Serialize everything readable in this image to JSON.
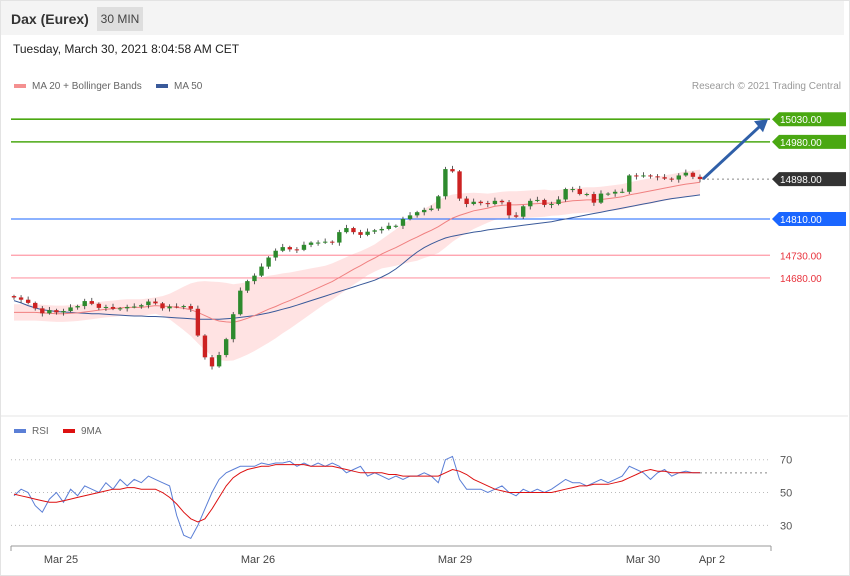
{
  "header": {
    "instrument": "Dax (Eurex)",
    "timeframe": "30 MIN"
  },
  "timestamp": "Tuesday, March 30, 2021 8:04:58 AM CET",
  "legend": {
    "ma20": {
      "label": "MA 20 + Bollinger Bands",
      "color": "#f08080"
    },
    "ma50": {
      "label": "MA 50",
      "color": "#3a5a9a"
    },
    "rsi": {
      "label": "RSI",
      "color": "#5b7fd6"
    },
    "rsi_ma": {
      "label": "9MA",
      "color": "#dd1111"
    }
  },
  "copyright": "Research © 2021 Trading Central",
  "colors": {
    "resistance": "#4aa812",
    "support": "#ff9aa6",
    "pivot": "#1a66ff",
    "current": "#333333",
    "up_candle": "#2d8a2d",
    "down_candle": "#cc2222",
    "band": "#ffd9d9",
    "arrow": "#2f5fa8"
  },
  "chart_data": [
    {
      "type": "line",
      "title": "Dax (Eurex) 30 MIN",
      "x_labels": [
        "Mar 25",
        "Mar 26",
        "Mar 29",
        "Mar 30",
        "Apr 2"
      ],
      "ylim": [
        14380,
        15090
      ],
      "levels": [
        {
          "value": 15030.0,
          "label": "15030.00",
          "kind": "resistance"
        },
        {
          "value": 14980.0,
          "label": "14980.00",
          "kind": "resistance"
        },
        {
          "value": 14898.0,
          "label": "14898.00",
          "kind": "current"
        },
        {
          "value": 14810.0,
          "label": "14810.00",
          "kind": "pivot"
        },
        {
          "value": 14730.0,
          "label": "14730.00",
          "kind": "support"
        },
        {
          "value": 14680.0,
          "label": "14680.00",
          "kind": "support"
        }
      ],
      "closes": [
        14637,
        14632,
        14625,
        14613,
        14602,
        14609,
        14604,
        14607,
        14615,
        14618,
        14629,
        14623,
        14614,
        14616,
        14612,
        14613,
        14616,
        14617,
        14620,
        14628,
        14624,
        14613,
        14617,
        14616,
        14618,
        14612,
        14553,
        14505,
        14485,
        14510,
        14545,
        14600,
        14652,
        14673,
        14685,
        14705,
        14725,
        14740,
        14748,
        14743,
        14742,
        14753,
        14758,
        14758,
        14760,
        14758,
        14781,
        14790,
        14781,
        14775,
        14782,
        14785,
        14788,
        14795,
        14795,
        14810,
        14818,
        14825,
        14830,
        14833,
        14860,
        14920,
        14915,
        14855,
        14843,
        14848,
        14845,
        14843,
        14850,
        14847,
        14818,
        14815,
        14838,
        14850,
        14852,
        14841,
        14843,
        14853,
        14876,
        14876,
        14865,
        14865,
        14846,
        14866,
        14866,
        14870,
        14870,
        14906,
        14904,
        14906,
        14904,
        14902,
        14899,
        14897,
        14906,
        14912,
        14903,
        14898
      ],
      "ma20": [
        14604,
        14604,
        14604,
        14604,
        14603,
        14602,
        14601,
        14601,
        14602,
        14603,
        14605,
        14607,
        14609,
        14611,
        14612,
        14614,
        14615,
        14615,
        14615,
        14617,
        14619,
        14618,
        14617,
        14615,
        14613,
        14610,
        14604,
        14597,
        14590,
        14585,
        14583,
        14582,
        14586,
        14591,
        14597,
        14604,
        14611,
        14617,
        14624,
        14630,
        14637,
        14644,
        14651,
        14658,
        14665,
        14672,
        14681,
        14690,
        14699,
        14707,
        14716,
        14724,
        14733,
        14740,
        14747,
        14755,
        14763,
        14770,
        14778,
        14785,
        14793,
        14803,
        14812,
        14818,
        14823,
        14828,
        14831,
        14834,
        14838,
        14840,
        14841,
        14841,
        14842,
        14843,
        14844,
        14845,
        14845,
        14846,
        14848,
        14850,
        14851,
        14852,
        14852,
        14853,
        14855,
        14857,
        14859,
        14863,
        14866,
        14869,
        14872,
        14875,
        14878,
        14881,
        14884,
        14887,
        14889,
        14891
      ],
      "bb_width": [
        18,
        18,
        18,
        18,
        18,
        18,
        18,
        18,
        18,
        18,
        18,
        18,
        18,
        18,
        18,
        18,
        18,
        18,
        18,
        18,
        18,
        22,
        28,
        38,
        48,
        58,
        68,
        76,
        82,
        86,
        86,
        84,
        82,
        80,
        78,
        76,
        74,
        70,
        66,
        62,
        58,
        54,
        50,
        46,
        42,
        40,
        38,
        36,
        34,
        32,
        30,
        30,
        32,
        36,
        40,
        44,
        48,
        52,
        54,
        56,
        58,
        56,
        52,
        48,
        44,
        40,
        36,
        32,
        30,
        30,
        30,
        30,
        30,
        30,
        30,
        30,
        28,
        28,
        28,
        28,
        28,
        28,
        28,
        28,
        28,
        28,
        28,
        28,
        28,
        28,
        28,
        28,
        28,
        28,
        28,
        28,
        28,
        28
      ],
      "ma50": [
        14630,
        14625,
        14619,
        14614,
        14610,
        14608,
        14606,
        14605,
        14604,
        14603,
        14602,
        14601,
        14601,
        14600,
        14599,
        14598,
        14597,
        14596,
        14596,
        14595,
        14595,
        14594,
        14593,
        14592,
        14591,
        14590,
        14589,
        14589,
        14589,
        14589,
        14590,
        14591,
        14593,
        14595,
        14597,
        14600,
        14603,
        14607,
        14611,
        14615,
        14620,
        14625,
        14630,
        14635,
        14640,
        14645,
        14650,
        14655,
        14660,
        14665,
        14670,
        14675,
        14682,
        14690,
        14700,
        14712,
        14725,
        14737,
        14747,
        14755,
        14762,
        14768,
        14772,
        14775,
        14778,
        14781,
        14783,
        14786,
        14788,
        14790,
        14792,
        14794,
        14796,
        14798,
        14800,
        14802,
        14804,
        14807,
        14810,
        14813,
        14816,
        14819,
        14822,
        14825,
        14828,
        14831,
        14834,
        14837,
        14840,
        14843,
        14846,
        14849,
        14852,
        14855,
        14857,
        14859,
        14861,
        14863
      ],
      "arrow": {
        "from_value": 14898,
        "to_value": 15030
      }
    },
    {
      "type": "line",
      "title": "RSI",
      "ylim": [
        18,
        82
      ],
      "levels": [
        70,
        50,
        30
      ],
      "rsi": [
        48,
        52,
        50,
        42,
        38,
        46,
        50,
        44,
        52,
        48,
        54,
        52,
        50,
        56,
        52,
        58,
        54,
        58,
        56,
        60,
        58,
        56,
        54,
        36,
        24,
        22,
        30,
        40,
        50,
        58,
        62,
        64,
        66,
        66,
        66,
        68,
        67,
        68,
        68,
        69,
        66,
        68,
        66,
        68,
        66,
        68,
        66,
        62,
        64,
        66,
        60,
        62,
        60,
        58,
        60,
        58,
        60,
        60,
        62,
        60,
        56,
        70,
        72,
        58,
        52,
        52,
        52,
        50,
        52,
        54,
        50,
        48,
        52,
        50,
        52,
        50,
        52,
        55,
        58,
        56,
        56,
        54,
        56,
        58,
        56,
        58,
        60,
        66,
        64,
        62,
        58,
        62,
        64,
        60,
        62,
        63,
        62,
        62
      ],
      "rsi_ma": [
        49,
        48,
        47,
        46,
        45,
        44,
        44,
        45,
        46,
        47,
        48,
        49,
        50,
        51,
        52,
        52,
        53,
        53,
        52,
        52,
        52,
        50,
        47,
        43,
        38,
        34,
        32,
        34,
        40,
        47,
        54,
        59,
        62,
        64,
        65,
        66,
        66,
        67,
        67,
        67,
        67,
        67,
        66,
        66,
        66,
        66,
        65,
        64,
        63,
        62,
        62,
        62,
        62,
        61,
        61,
        60,
        60,
        60,
        60,
        60,
        60,
        62,
        64,
        63,
        61,
        58,
        56,
        54,
        52,
        51,
        50,
        50,
        50,
        50,
        50,
        50,
        50,
        51,
        52,
        53,
        54,
        54,
        55,
        55,
        55,
        56,
        57,
        59,
        61,
        63,
        64,
        63,
        63,
        62,
        62,
        62,
        62,
        62
      ]
    }
  ]
}
